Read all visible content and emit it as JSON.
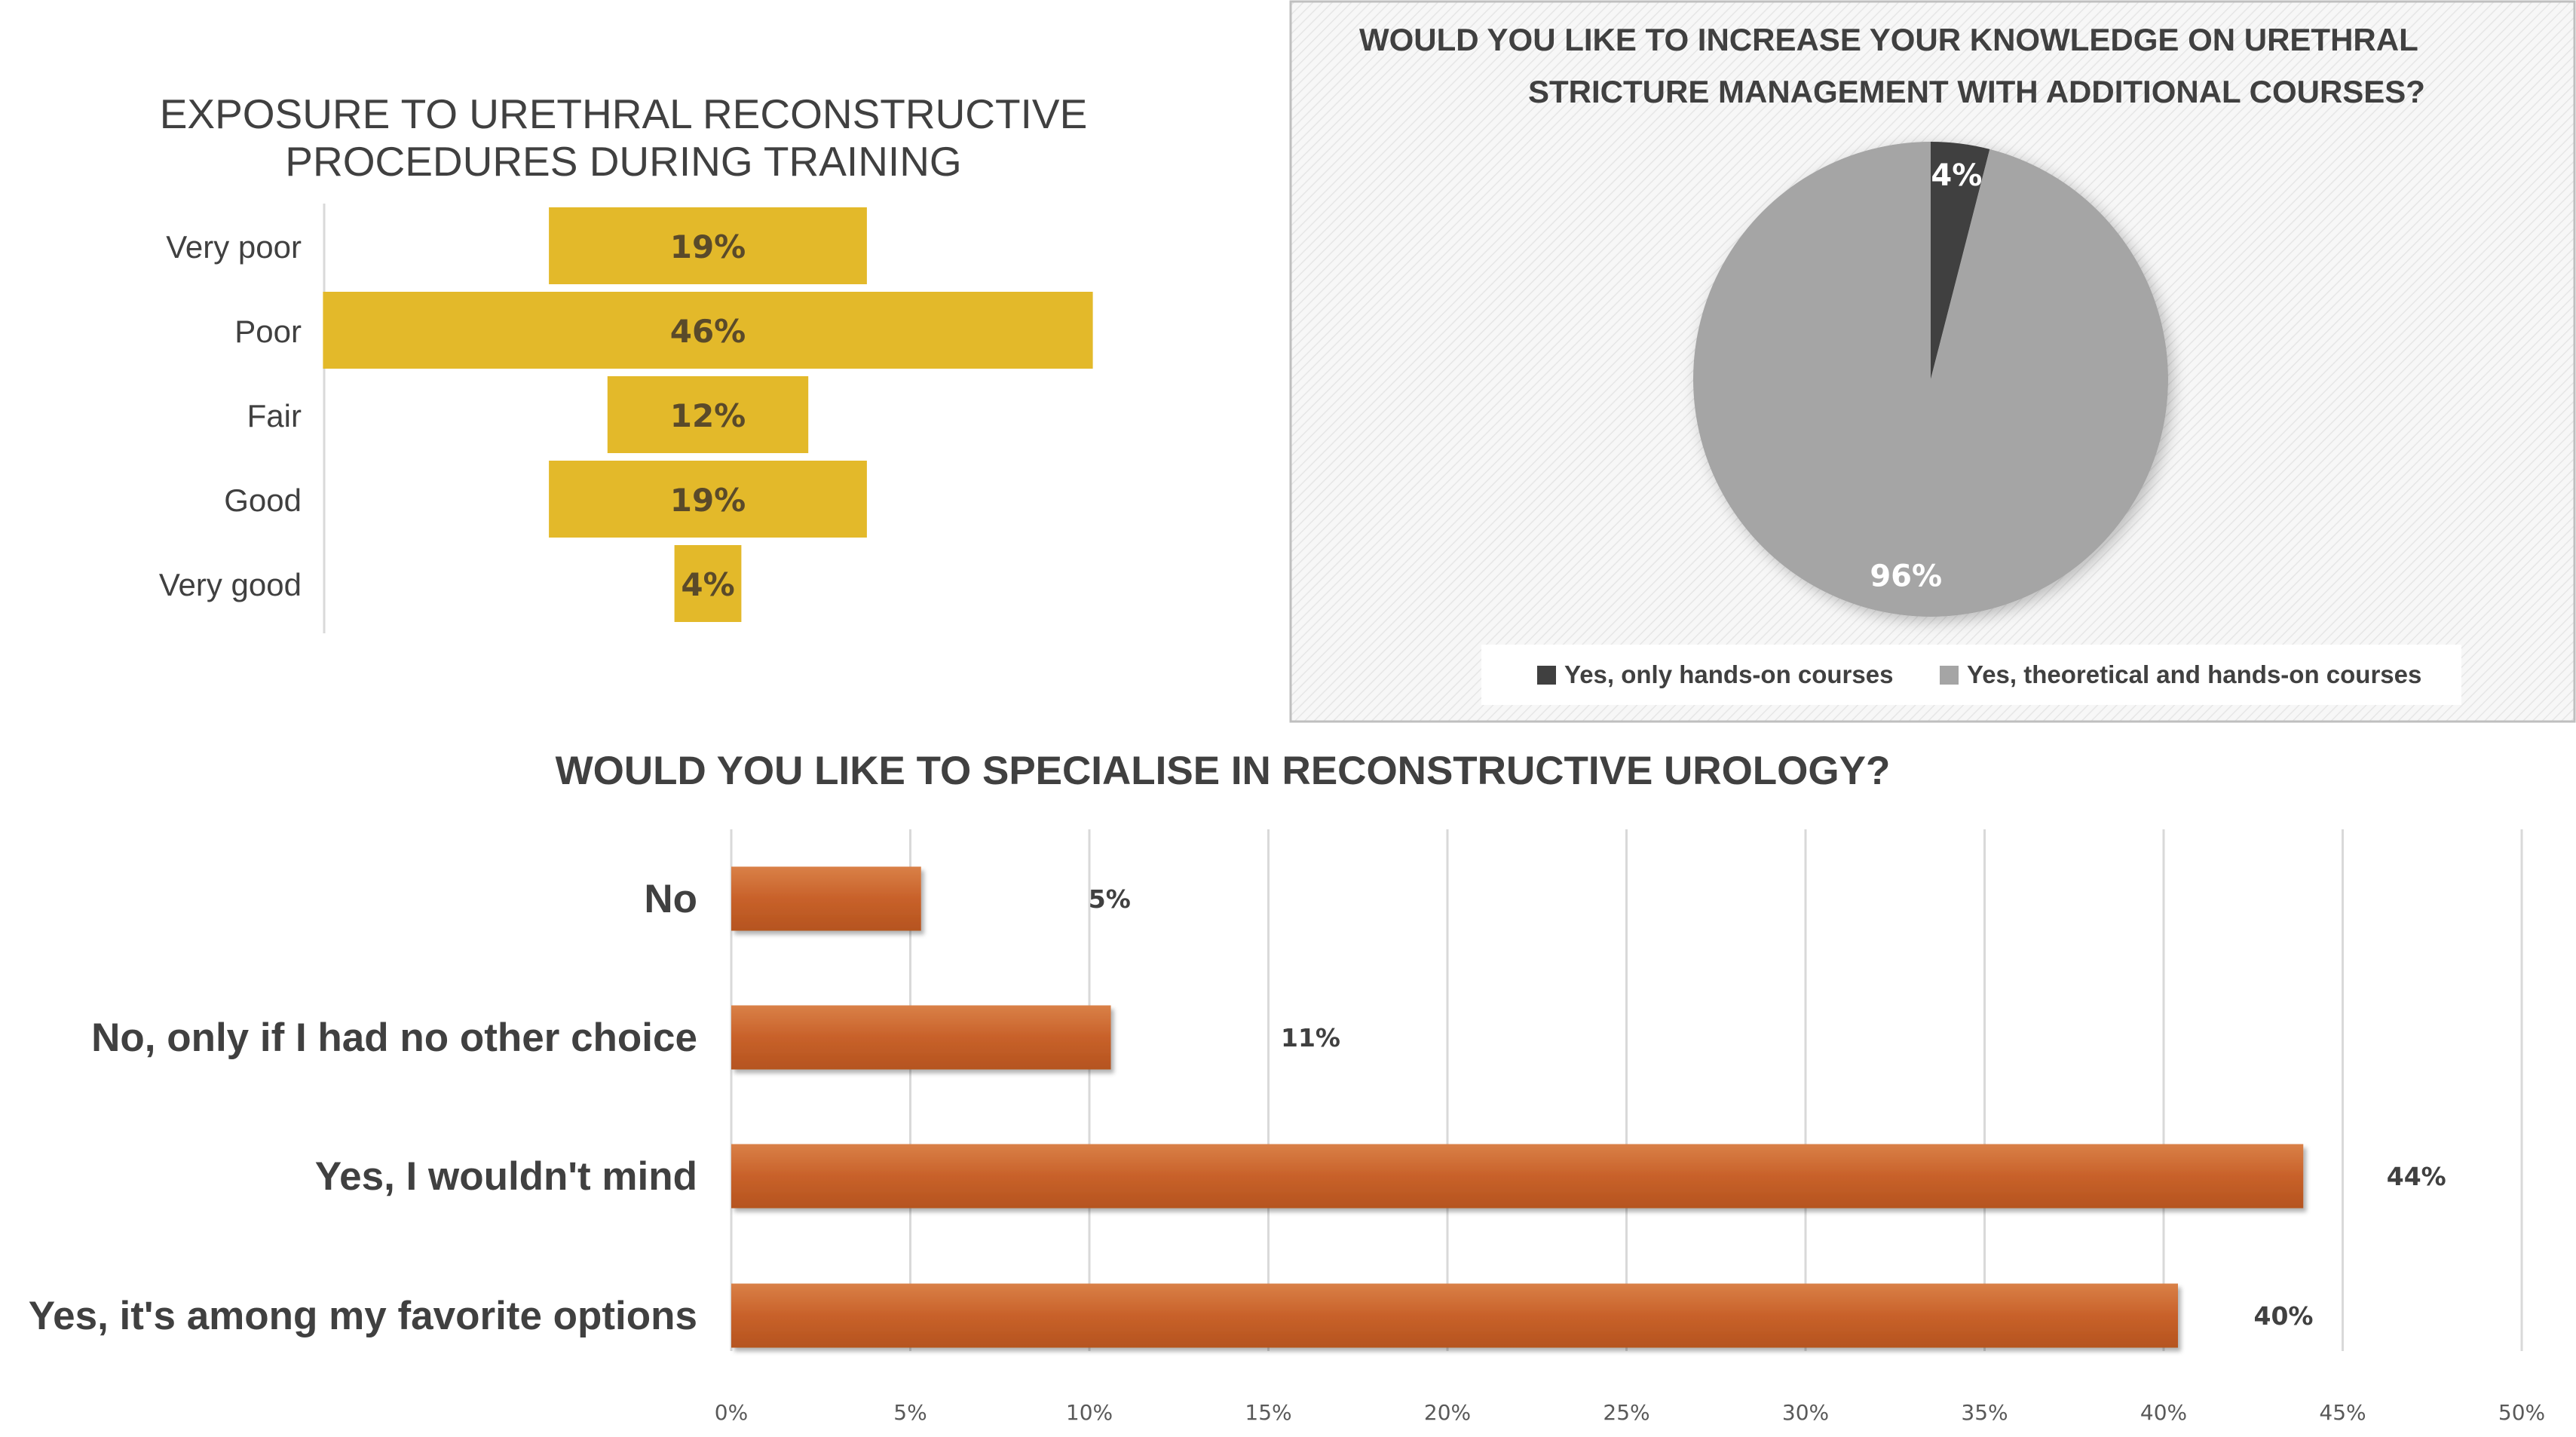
{
  "chart_data": [
    {
      "type": "bar",
      "orientation": "horizontal-centered",
      "title_lines": [
        "EXPOSURE TO URETHRAL RECONSTRUCTIVE",
        "PROCEDURES DURING TRAINING"
      ],
      "categories": [
        "Very poor",
        "Poor",
        "Fair",
        "Good",
        "Very good"
      ],
      "values": [
        19,
        46,
        12,
        19,
        4
      ],
      "value_labels": [
        "19%",
        "46%",
        "12%",
        "19%",
        "4%"
      ],
      "color": "#E3B92A",
      "label_color": "#5A4A2A"
    },
    {
      "type": "pie",
      "title_lines": [
        "WOULD YOU LIKE TO INCREASE YOUR KNOWLEDGE ON URETHRAL",
        "STRICTURE MANAGEMENT WITH ADDITIONAL COURSES?"
      ],
      "slices": [
        {
          "label": "Yes, only hands-on courses",
          "value": 4,
          "value_label": "4%",
          "color": "#404040"
        },
        {
          "label": "Yes, theoretical and hands-on courses",
          "value": 96,
          "value_label": "96%",
          "color": "#A5A5A5"
        }
      ],
      "legend_position": "bottom"
    },
    {
      "type": "bar",
      "orientation": "horizontal",
      "title": "WOULD YOU LIKE TO SPECIALISE IN RECONSTRUCTIVE UROLOGY?",
      "categories": [
        "No",
        "No, only if I had no other choice",
        "Yes, I wouldn't mind",
        "Yes, it's among my favorite options"
      ],
      "values": [
        5.3,
        10.6,
        43.9,
        40.4
      ],
      "value_labels": [
        "5%",
        "11%",
        "44%",
        "40%"
      ],
      "xlim": [
        0,
        50
      ],
      "xticks": [
        "0%",
        "5%",
        "10%",
        "15%",
        "20%",
        "25%",
        "30%",
        "35%",
        "40%",
        "45%",
        "50%"
      ],
      "grid": true,
      "color": "#C8612A"
    }
  ]
}
